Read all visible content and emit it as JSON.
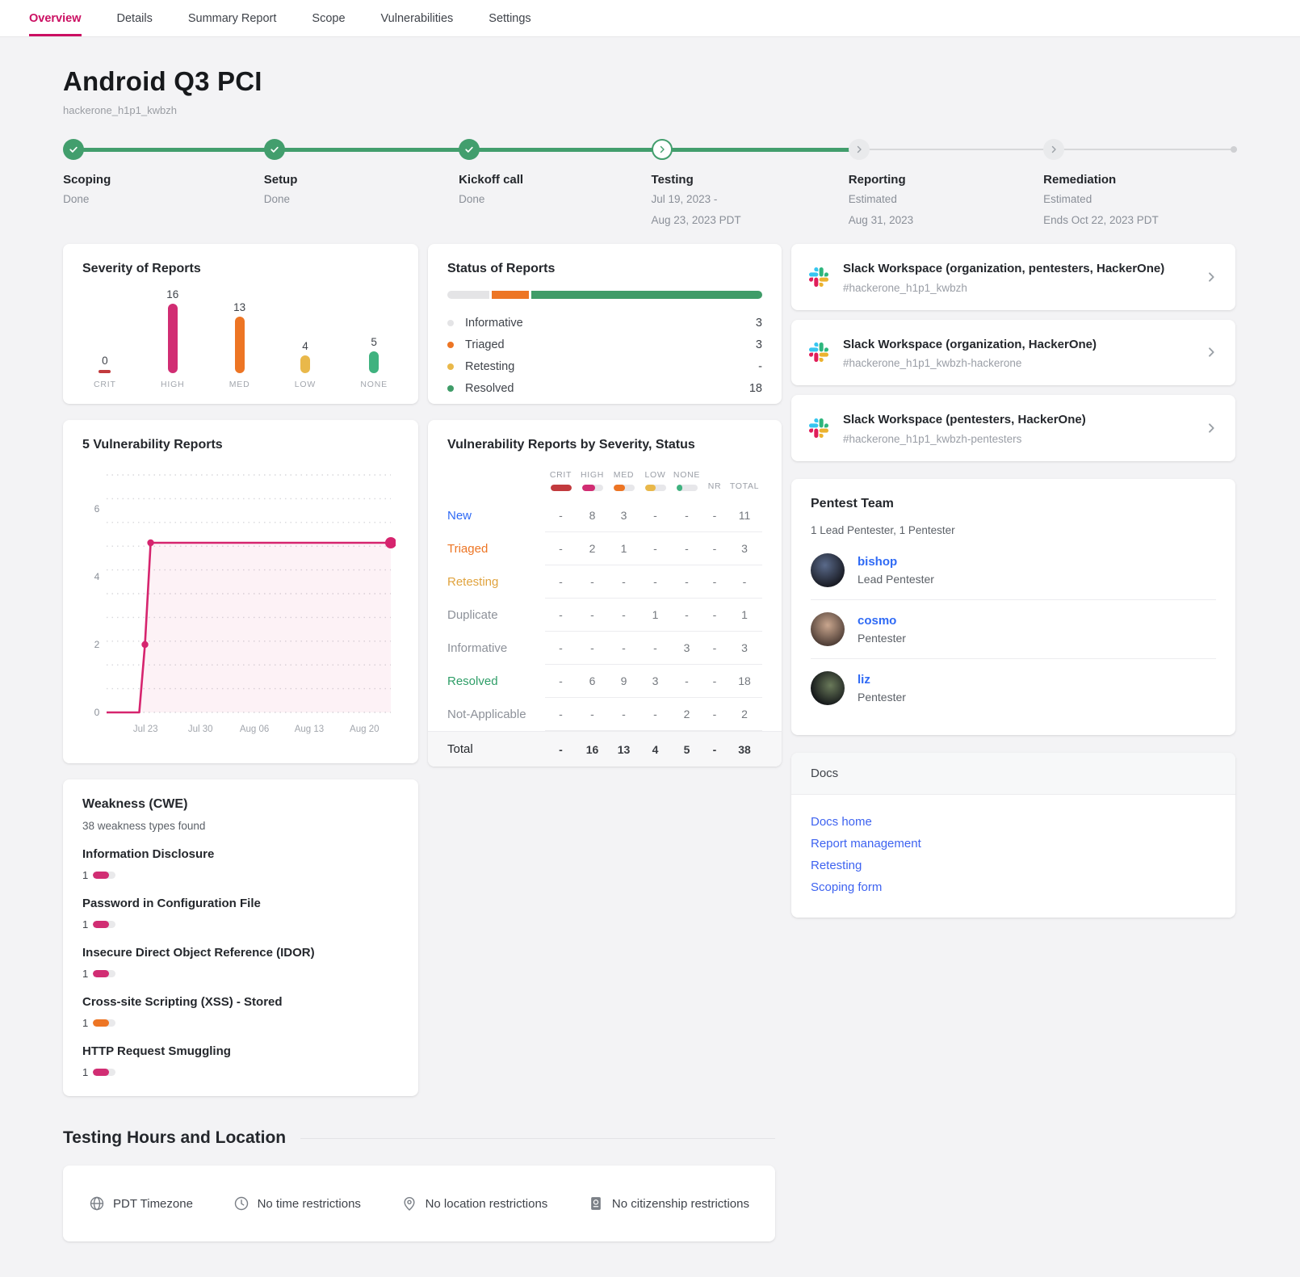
{
  "nav": {
    "tabs": [
      {
        "label": "Overview",
        "active": true
      },
      {
        "label": "Details",
        "active": false
      },
      {
        "label": "Summary Report",
        "active": false
      },
      {
        "label": "Scope",
        "active": false
      },
      {
        "label": "Vulnerabilities",
        "active": false
      },
      {
        "label": "Settings",
        "active": false
      }
    ]
  },
  "header": {
    "title": "Android Q3 PCI",
    "subtitle": "hackerone_h1p1_kwbzh"
  },
  "timeline": {
    "progress_end_pct": 67,
    "stages": [
      {
        "name": "Scoping",
        "lines": [
          "Done"
        ],
        "state": "done",
        "pos_pct": 0.9
      },
      {
        "name": "Setup",
        "lines": [
          "Done"
        ],
        "state": "done",
        "pos_pct": 18.0
      },
      {
        "name": "Kickoff call",
        "lines": [
          "Done"
        ],
        "state": "done",
        "pos_pct": 34.6
      },
      {
        "name": "Testing",
        "lines": [
          "Jul 19, 2023 -",
          "Aug 23, 2023 PDT"
        ],
        "state": "current",
        "pos_pct": 51.0
      },
      {
        "name": "Reporting",
        "lines": [
          "Estimated",
          "Aug 31, 2023"
        ],
        "state": "upcoming",
        "pos_pct": 67.8
      },
      {
        "name": "Remediation",
        "lines": [
          "Estimated",
          "Ends Oct 22, 2023 PDT"
        ],
        "state": "upcoming",
        "pos_pct": 84.4
      }
    ]
  },
  "chart_data": [
    {
      "id": "severity",
      "type": "bar",
      "title": "Severity of Reports",
      "categories": [
        "CRIT",
        "HIGH",
        "MED",
        "LOW",
        "NONE"
      ],
      "values": [
        0,
        16,
        13,
        4,
        5
      ],
      "colors": [
        "#c23a3d",
        "#d12d73",
        "#ed7524",
        "#e9b84a",
        "#3fb27f"
      ],
      "ylim": [
        0,
        16
      ]
    },
    {
      "id": "status",
      "type": "bar",
      "title": "Status of Reports",
      "categories": [
        "Informative",
        "Triaged",
        "Retesting",
        "Resolved"
      ],
      "values": [
        3,
        3,
        null,
        18
      ],
      "display_values": [
        "3",
        "3",
        "-",
        "18"
      ],
      "colors": [
        "#e4e4e6",
        "#ed7524",
        "#e9b84a",
        "#3f9c68"
      ],
      "bar_segments": [
        {
          "color": "#e4e4e6",
          "pct": 13.5
        },
        {
          "color": "#ed7524",
          "pct": 12
        },
        {
          "color": "#3f9c68",
          "pct": 74.5
        }
      ]
    },
    {
      "id": "vuln_trend",
      "type": "line",
      "title": "5 Vulnerability Reports",
      "line_color": "#d6246e",
      "fill_color": "rgba(214,36,110,0.06)",
      "ylim": [
        0,
        7
      ],
      "y_ticks": [
        0,
        2,
        4,
        6
      ],
      "x_ticks": [
        "Jul 23",
        "Jul 30",
        "Aug 06",
        "Aug 13",
        "Aug 20"
      ],
      "x_tick_pos": [
        0.137,
        0.33,
        0.52,
        0.713,
        0.907
      ],
      "points": [
        {
          "x": 0,
          "y": 0
        },
        {
          "x": 0.115,
          "y": 0
        },
        {
          "x": 0.135,
          "y": 2,
          "marker": "small"
        },
        {
          "x": 0.155,
          "y": 5,
          "marker": "small"
        },
        {
          "x": 1,
          "y": 5,
          "marker": "large"
        }
      ]
    },
    {
      "id": "vuln_table",
      "type": "table",
      "title": "Vulnerability Reports by Severity, Status",
      "columns": [
        "CRIT",
        "HIGH",
        "MED",
        "LOW",
        "NONE",
        "NR",
        "TOTAL"
      ],
      "legend_colors": [
        "#c23a3d",
        "#d12d73",
        "#ed7524",
        "#e9b84a",
        "#3fb27f"
      ],
      "legend_fill": [
        1,
        0.62,
        0.55,
        0.5,
        0.3
      ],
      "rows": [
        {
          "label": "New",
          "label_color": "#2f6af5",
          "cells": [
            "-",
            "8",
            "3",
            "-",
            "-",
            "-",
            "11"
          ]
        },
        {
          "label": "Triaged",
          "label_color": "#ed7524",
          "cells": [
            "-",
            "2",
            "1",
            "-",
            "-",
            "-",
            "3"
          ]
        },
        {
          "label": "Retesting",
          "label_color": "#e0a33e",
          "cells": [
            "-",
            "-",
            "-",
            "-",
            "-",
            "-",
            "-"
          ]
        },
        {
          "label": "Duplicate",
          "label_color": "#8d9199",
          "cells": [
            "-",
            "-",
            "-",
            "1",
            "-",
            "-",
            "1"
          ]
        },
        {
          "label": "Informative",
          "label_color": "#8d9199",
          "cells": [
            "-",
            "-",
            "-",
            "-",
            "3",
            "-",
            "3"
          ]
        },
        {
          "label": "Resolved",
          "label_color": "#2f9e68",
          "cells": [
            "-",
            "6",
            "9",
            "3",
            "-",
            "-",
            "18"
          ]
        },
        {
          "label": "Not-Applicable",
          "label_color": "#8d9199",
          "cells": [
            "-",
            "-",
            "-",
            "-",
            "2",
            "-",
            "2"
          ]
        }
      ],
      "total_row": {
        "label": "Total",
        "cells": [
          "-",
          "16",
          "13",
          "4",
          "5",
          "-",
          "38"
        ]
      }
    }
  ],
  "slack_cards": [
    {
      "title": "Slack Workspace (organization, pentesters, HackerOne)",
      "channel": "#hackerone_h1p1_kwbzh"
    },
    {
      "title": "Slack Workspace (organization, HackerOne)",
      "channel": "#hackerone_h1p1_kwbzh-hackerone"
    },
    {
      "title": "Slack Workspace (pentesters, HackerOne)",
      "channel": "#hackerone_h1p1_kwbzh-pentesters"
    }
  ],
  "team": {
    "title": "Pentest Team",
    "summary": "1 Lead Pentester, 1 Pentester",
    "members": [
      {
        "name": "bishop",
        "role": "Lead Pentester",
        "avatar_gradient": "radial-gradient(circle at 42% 35%, #5a6a8a, #1a1d26 72%)"
      },
      {
        "name": "cosmo",
        "role": "Pentester",
        "avatar_gradient": "radial-gradient(circle at 50% 38%, #c9a68e, #4a3a33 78%)"
      },
      {
        "name": "liz",
        "role": "Pentester",
        "avatar_gradient": "radial-gradient(circle at 58% 42%, #6a7a5a, #15181a 72%)"
      }
    ]
  },
  "weakness": {
    "title": "Weakness (CWE)",
    "subtitle": "38 weakness types found",
    "items": [
      {
        "name": "Information Disclosure",
        "count": "1",
        "color": "#d12d73",
        "fill": 0.72
      },
      {
        "name": "Password in Configuration File",
        "count": "1",
        "color": "#d12d73",
        "fill": 0.72
      },
      {
        "name": "Insecure Direct Object Reference (IDOR)",
        "count": "1",
        "color": "#d12d73",
        "fill": 0.72
      },
      {
        "name": "Cross-site Scripting (XSS) - Stored",
        "count": "1",
        "color": "#ed7524",
        "fill": 0.72
      },
      {
        "name": "HTTP Request Smuggling",
        "count": "1",
        "color": "#d12d73",
        "fill": 0.72
      }
    ]
  },
  "docs": {
    "title": "Docs",
    "links": [
      "Docs home",
      "Report management",
      "Retesting",
      "Scoping form"
    ]
  },
  "testing_hours": {
    "title": "Testing Hours and Location",
    "items": [
      {
        "icon": "globe-icon",
        "label": "PDT Timezone"
      },
      {
        "icon": "clock-icon",
        "label": "No time restrictions"
      },
      {
        "icon": "location-pin-icon",
        "label": "No location restrictions"
      },
      {
        "icon": "passport-icon",
        "label": "No citizenship restrictions"
      }
    ]
  },
  "colors": {
    "brand_accent": "#cb0f62",
    "timeline_green": "#429e6d",
    "link_blue": "#3e63f0",
    "crit_red": "#c23a3d",
    "high_pink": "#d12d73",
    "med_orange": "#ed7524",
    "low_amber": "#e9b84a",
    "none_green": "#3fb27f",
    "resolved_green": "#2f9e68"
  }
}
